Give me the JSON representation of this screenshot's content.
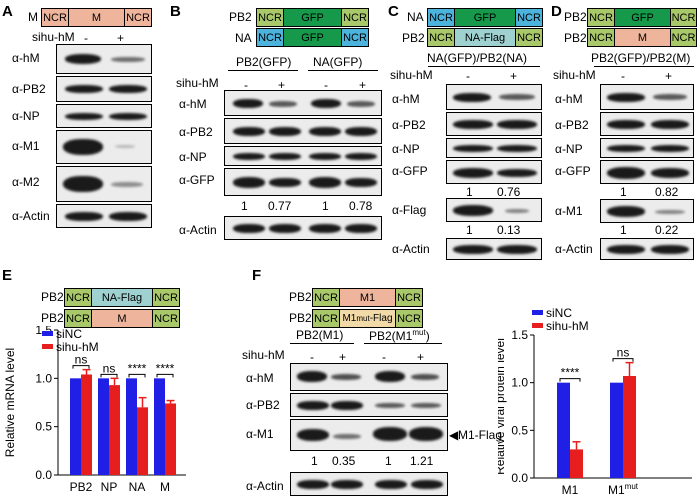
{
  "panels": {
    "A": {
      "label": "A",
      "construct": {
        "prefix": "M",
        "segments": [
          "NCR",
          "M",
          "NCR"
        ]
      },
      "treatment": {
        "label": "sihu-hM",
        "marks": [
          "-",
          "+"
        ]
      },
      "blots": [
        "α-hM",
        "α-PB2",
        "α-NP",
        "α-M1",
        "α-M2",
        "α-Actin"
      ]
    },
    "B": {
      "label": "B",
      "constructs": [
        {
          "prefix": "PB2",
          "segments": [
            "NCR",
            "GFP",
            "NCR"
          ]
        },
        {
          "prefix": "NA",
          "segments": [
            "NCR",
            "GFP",
            "NCR"
          ]
        }
      ],
      "groups": [
        "PB2(GFP)",
        "NA(GFP)"
      ],
      "treatment": {
        "label": "sihu-hM",
        "marks": [
          "-",
          "+",
          "-",
          "+"
        ]
      },
      "blots": [
        "α-hM",
        "α-PB2",
        "α-NP",
        "α-GFP",
        "α-Actin"
      ],
      "quant": [
        "1",
        "0.77",
        "1",
        "0.78"
      ]
    },
    "C": {
      "label": "C",
      "constructs": [
        {
          "prefix": "NA",
          "segments": [
            "NCR",
            "GFP",
            "NCR"
          ]
        },
        {
          "prefix": "PB2",
          "segments": [
            "NCR",
            "NA-Flag",
            "NCR"
          ]
        }
      ],
      "group": "NA(GFP)/PB2(NA)",
      "treatment": {
        "label": "sihu-hM",
        "marks": [
          "-",
          "+"
        ]
      },
      "blots": [
        "α-hM",
        "α-PB2",
        "α-NP",
        "α-GFP",
        "α-Flag",
        "α-Actin"
      ],
      "quant_gfp": [
        "1",
        "0.76"
      ],
      "quant_flag": [
        "1",
        "0.13"
      ]
    },
    "D": {
      "label": "D",
      "constructs": [
        {
          "prefix": "PB2",
          "segments": [
            "NCR",
            "GFP",
            "NCR"
          ]
        },
        {
          "prefix": "PB2",
          "segments": [
            "NCR",
            "M",
            "NCR"
          ]
        }
      ],
      "group": "PB2(GFP)/PB2(M)",
      "treatment": {
        "label": "sihu-hM",
        "marks": [
          "-",
          "+"
        ]
      },
      "blots": [
        "α-hM",
        "α-PB2",
        "α-NP",
        "α-GFP",
        "α-M1",
        "α-Actin"
      ],
      "quant_gfp": [
        "1",
        "0.82"
      ],
      "quant_m1": [
        "1",
        "0.22"
      ]
    },
    "E": {
      "label": "E",
      "constructs": [
        {
          "prefix": "PB2",
          "segments": [
            "NCR",
            "NA-Flag",
            "NCR"
          ]
        },
        {
          "prefix": "PB2",
          "segments": [
            "NCR",
            "M",
            "NCR"
          ]
        }
      ],
      "chart_data": {
        "type": "bar",
        "categories": [
          "PB2",
          "NP",
          "NA",
          "M"
        ],
        "series": [
          {
            "name": "siNC",
            "values": [
              1.0,
              1.0,
              1.0,
              1.0
            ],
            "errors": [
              0.0,
              0.0,
              0.0,
              0.0
            ],
            "color": "#1f1fe6"
          },
          {
            "name": "sihu-hM",
            "values": [
              1.04,
              0.93,
              0.7,
              0.74
            ],
            "errors": [
              0.05,
              0.07,
              0.1,
              0.03
            ],
            "color": "#e61e1e"
          }
        ],
        "ylabel": "Relative mRNA level",
        "ylim": [
          0.0,
          1.5
        ],
        "yticks": [
          "0.0",
          "0.5",
          "1.0",
          "1.5"
        ],
        "significance": [
          "ns",
          "ns",
          "****",
          "****"
        ],
        "legend": "top-left"
      }
    },
    "F": {
      "label": "F",
      "constructs": [
        {
          "prefix": "PB2",
          "segments": [
            "NCR",
            "M1",
            "NCR"
          ]
        },
        {
          "prefix": "PB2",
          "segments": [
            "NCR",
            "M1mut-Flag",
            "NCR"
          ]
        }
      ],
      "groups": [
        "PB2(M1)",
        "PB2(M1mut)"
      ],
      "treatment": {
        "label": "sihu-hM",
        "marks": [
          "-",
          "+",
          "-",
          "+"
        ]
      },
      "blots": [
        "α-hM",
        "α-PB2",
        "α-M1",
        "α-Actin"
      ],
      "m1_annotation": "M1-Flag",
      "quant": [
        "1",
        "0.35",
        "1",
        "1.21"
      ],
      "chart_data": {
        "type": "bar",
        "categories": [
          "M1",
          "M1mut"
        ],
        "series": [
          {
            "name": "siNC",
            "values": [
              1.0,
              1.0
            ],
            "errors": [
              0.0,
              0.0
            ],
            "color": "#1f1fe6"
          },
          {
            "name": "sihu-hM",
            "values": [
              0.3,
              1.07
            ],
            "errors": [
              0.08,
              0.14
            ],
            "color": "#e61e1e"
          }
        ],
        "ylabel": "Relative viral protein level",
        "ylim": [
          0.0,
          1.5
        ],
        "yticks": [
          "0.0",
          "0.5",
          "1.0",
          "1.5"
        ],
        "significance": [
          "****",
          "ns"
        ],
        "legend": "top-left"
      }
    }
  }
}
